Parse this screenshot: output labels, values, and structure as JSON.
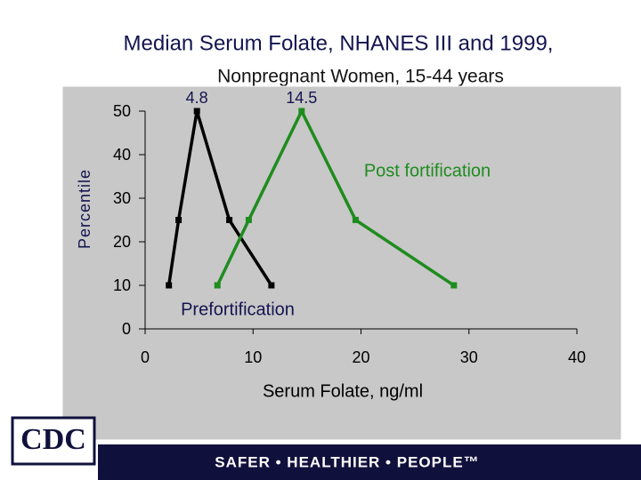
{
  "chart_data": {
    "type": "line",
    "title": "Median Serum Folate, NHANES III and 1999,",
    "subtitle": "Nonpregnant Women, 15-44 years",
    "x_label": "Serum Folate, ng/ml",
    "y_label": "Percentile",
    "xlim": [
      0,
      40
    ],
    "xticks": [
      0,
      10,
      20,
      30,
      40
    ],
    "ylim": [
      0,
      50
    ],
    "yticks": [
      0,
      10,
      20,
      30,
      40,
      50
    ],
    "grid": false,
    "series": [
      {
        "name": "Prefortification",
        "color": "#000000",
        "x": [
          2.2,
          3.1,
          4.8,
          7.8,
          11.7
        ],
        "values": [
          10,
          25,
          50,
          25,
          10
        ]
      },
      {
        "name": "Post fortification",
        "color": "#1e8c1e",
        "x": [
          6.7,
          9.6,
          14.5,
          19.5,
          28.6
        ],
        "values": [
          10,
          25,
          50,
          25,
          10
        ]
      }
    ]
  },
  "footer": {
    "logo": "CDC",
    "tagline": "SAFER • HEALTHIER • PEOPLE™"
  }
}
